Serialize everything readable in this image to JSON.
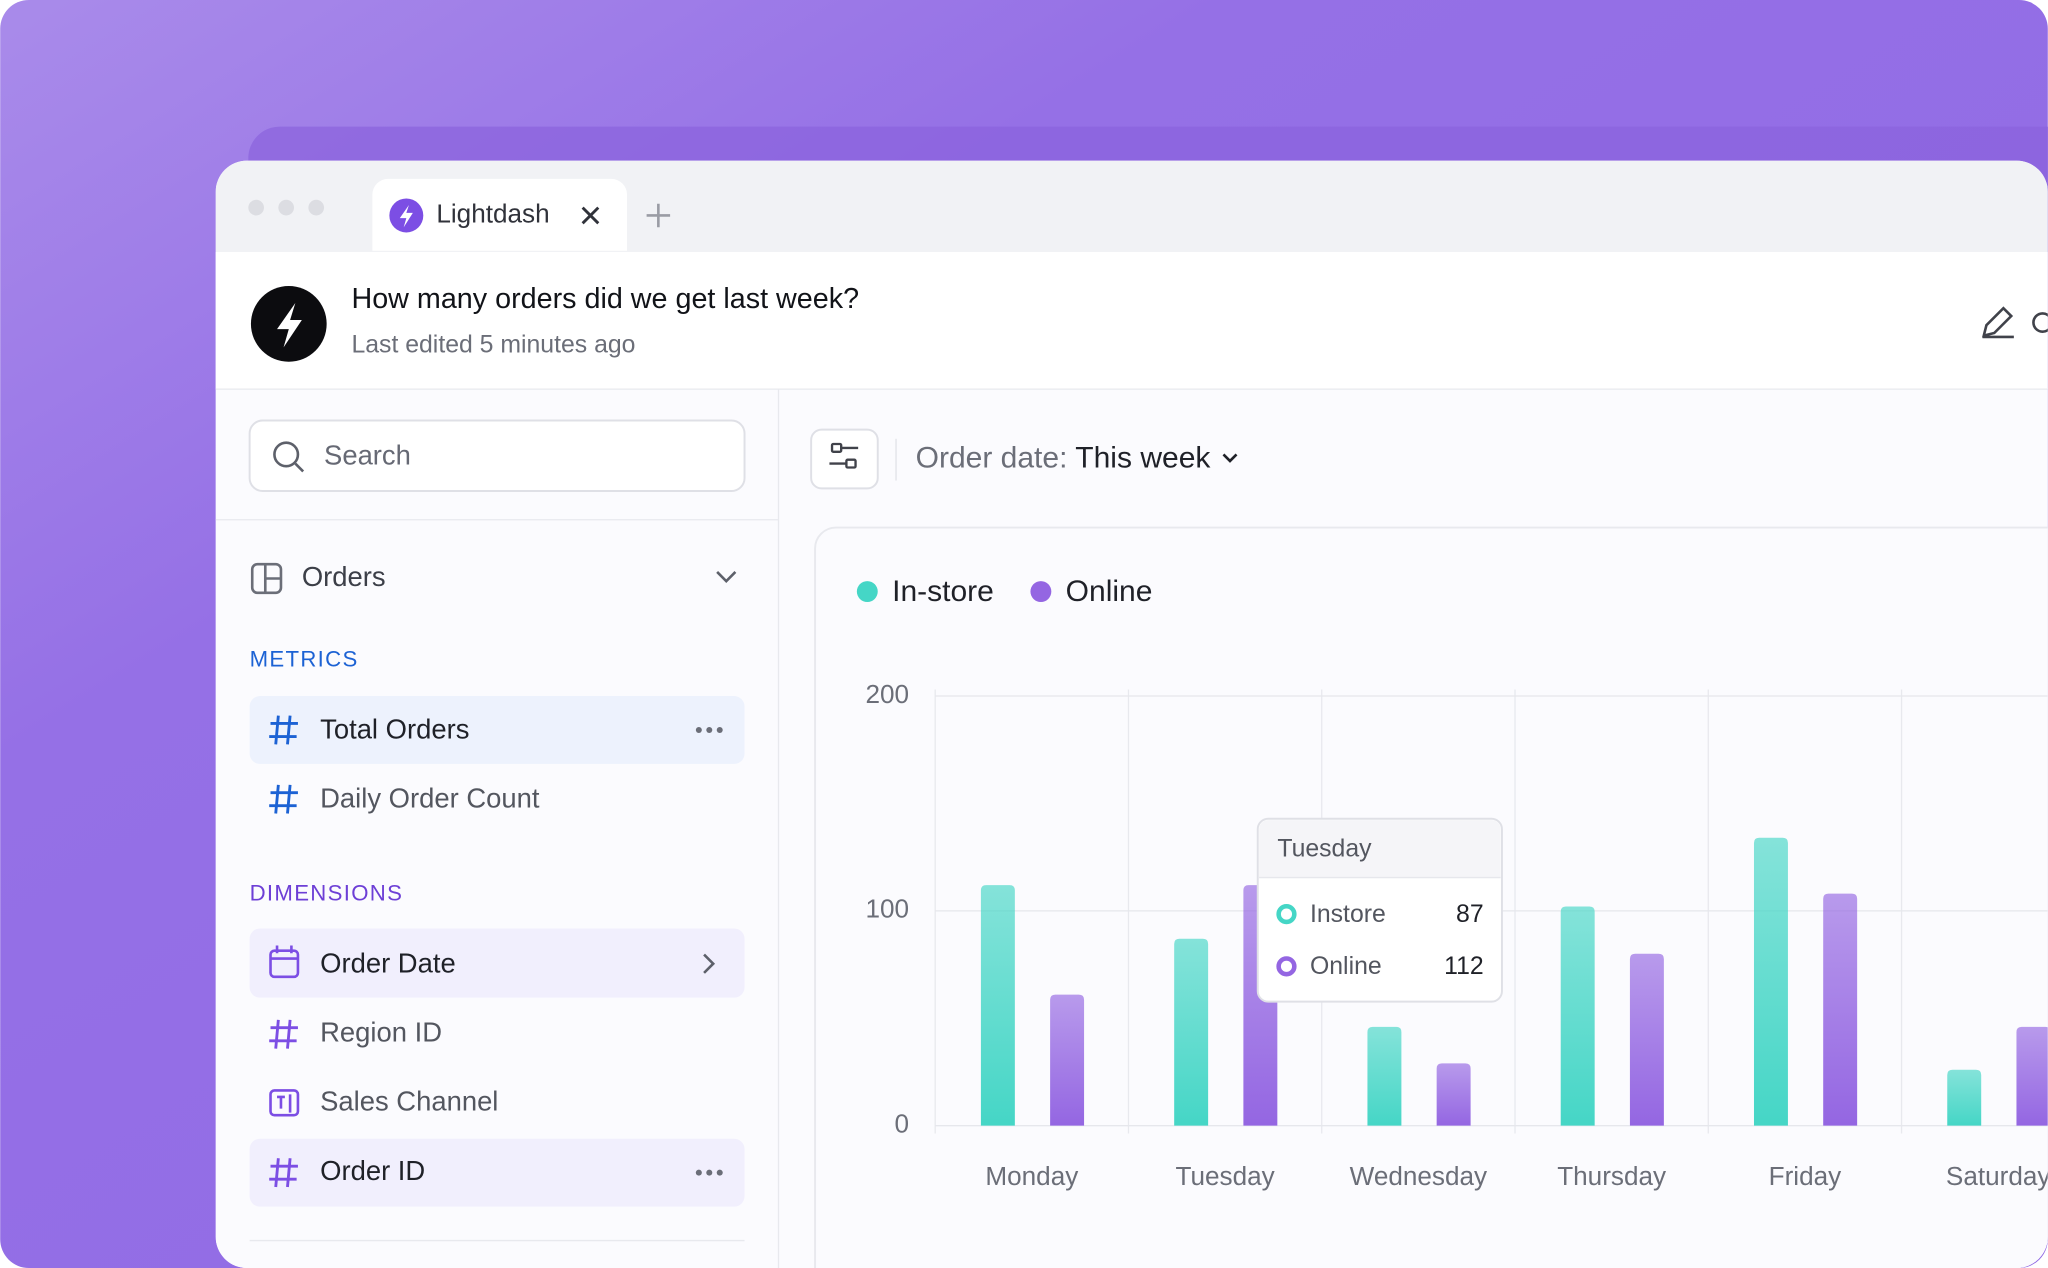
{
  "tab": {
    "title": "Lightdash"
  },
  "header": {
    "title": "How many orders did we get last week?",
    "subtitle": "Last edited 5 minutes ago"
  },
  "sidebar": {
    "search_placeholder": "Search",
    "table": "Orders",
    "metrics_heading": "METRICS",
    "metrics": [
      "Total Orders",
      "Daily Order Count"
    ],
    "dimensions_heading": "DIMENSIONS",
    "dimensions": [
      "Order Date",
      "Region ID",
      "Sales Channel",
      "Order ID"
    ]
  },
  "filter": {
    "label": "Order date:",
    "value": "This week"
  },
  "tooltip": {
    "series": [
      "Instore",
      "Online"
    ]
  },
  "chart_data": {
    "type": "bar",
    "categories": [
      "Monday",
      "Tuesday",
      "Wednesday",
      "Thursday",
      "Friday",
      "Saturday"
    ],
    "series": [
      {
        "name": "In-store",
        "color": "#45d6c6",
        "values": [
          112,
          87,
          46,
          102,
          134,
          26
        ]
      },
      {
        "name": "Online",
        "color": "#9466e2",
        "values": [
          61,
          112,
          29,
          80,
          108,
          46
        ]
      }
    ],
    "ylim": [
      0,
      200
    ],
    "yticks": [
      0,
      100,
      200
    ],
    "grid": true
  }
}
